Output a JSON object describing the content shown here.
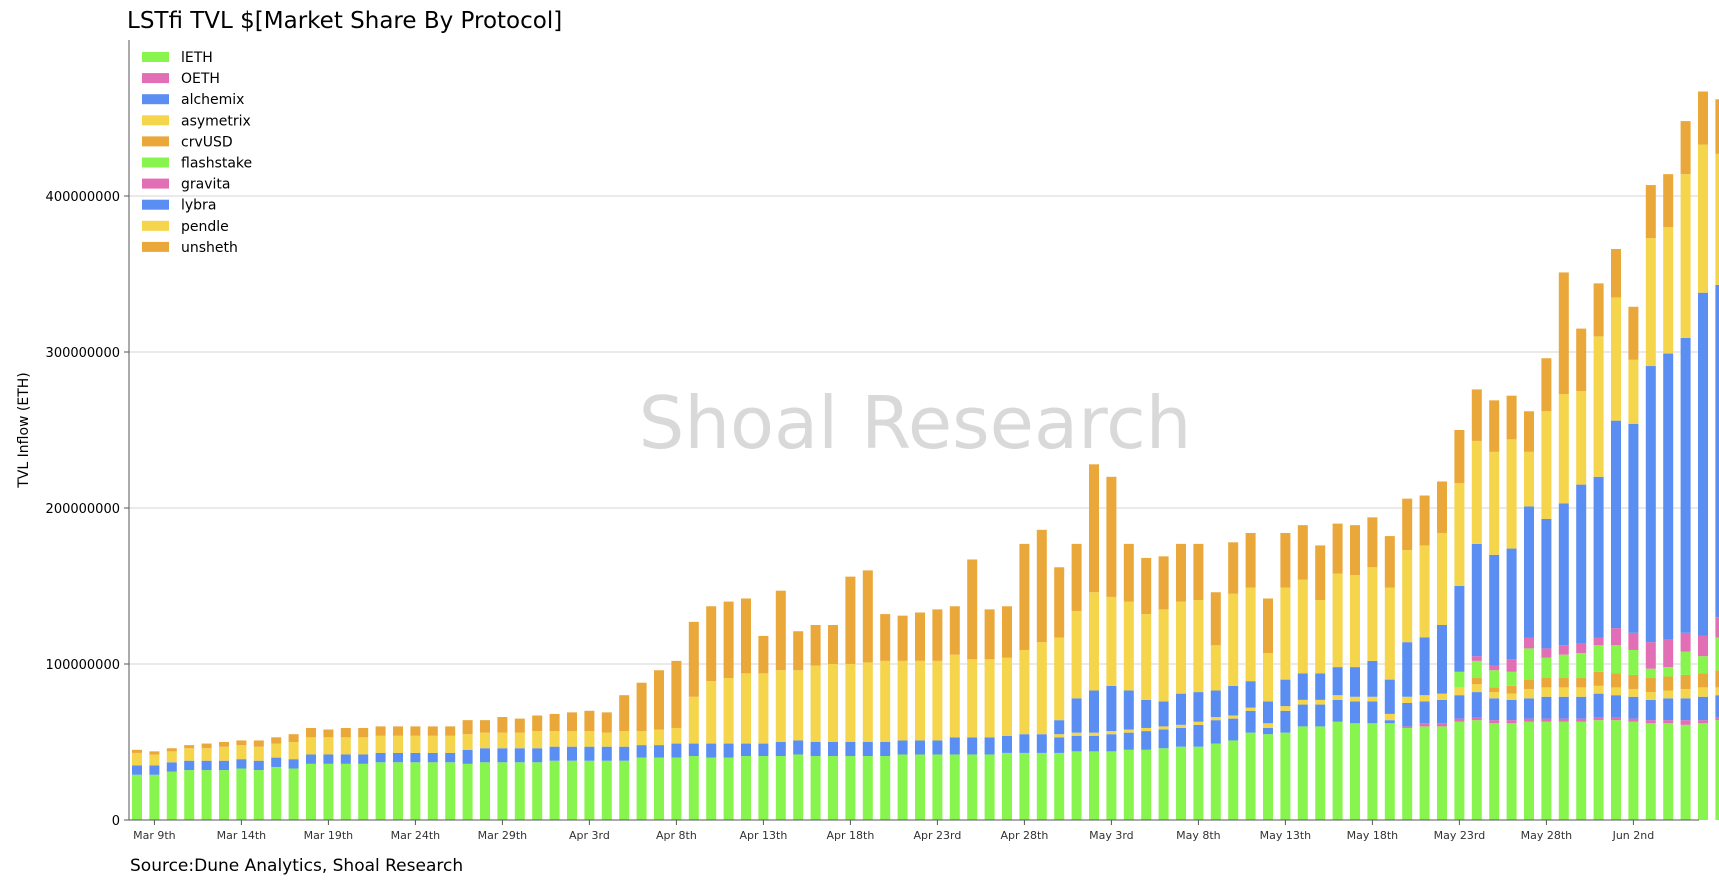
{
  "chart_data": {
    "type": "bar",
    "stacked": true,
    "title": "LSTfi TVL $[Market Share By Protocol]",
    "source": "Source:Dune Analytics, Shoal Research",
    "watermark": "Shoal Research",
    "ylabel": "TVL Inflow (ETH)",
    "xlabel": "",
    "ylim": [
      0,
      500000000
    ],
    "yticks": [
      0,
      100000000,
      200000000,
      300000000,
      400000000
    ],
    "grid": true,
    "legend_position": "top-left",
    "x_tick_labels": [
      "Mar 9th",
      "Mar 14th",
      "Mar 19th",
      "Mar 24th",
      "Mar 29th",
      "Apr 3rd",
      "Apr 8th",
      "Apr 13th",
      "Apr 18th",
      "Apr 23rd",
      "Apr 28th",
      "May 3rd",
      "May 8th",
      "May 13th",
      "May 18th",
      "May 23rd",
      "May 28th",
      "Jun 2nd"
    ],
    "tick_every": 5,
    "legend": [
      {
        "name": "lETH",
        "color": "#88f54e"
      },
      {
        "name": "OETH",
        "color": "#e26eb5"
      },
      {
        "name": "alchemix",
        "color": "#5b8ef2"
      },
      {
        "name": "asymetrix",
        "color": "#f4d54b"
      },
      {
        "name": "crvUSD",
        "color": "#eaa73a"
      },
      {
        "name": "flashstake",
        "color": "#88f54e"
      },
      {
        "name": "gravita",
        "color": "#e26eb5"
      },
      {
        "name": "lybra",
        "color": "#5b8ef2"
      },
      {
        "name": "pendle",
        "color": "#f4d54b"
      },
      {
        "name": "unsheth",
        "color": "#eaa73a"
      }
    ],
    "segments_order": [
      "base",
      "oeth",
      "alchemix",
      "asymetrix",
      "crvusd",
      "flashstake",
      "gravita",
      "lybra",
      "pendle",
      "unsheth"
    ],
    "segment_colors": {
      "base": "#88f54e",
      "oeth": "#e26eb5",
      "alchemix": "#5b8ef2",
      "asymetrix": "#f4d54b",
      "crvusd": "#eaa73a",
      "flashstake": "#88f54e",
      "gravita": "#e26eb5",
      "lybra": "#5b8ef2",
      "pendle": "#f4d54b",
      "unsheth": "#eaa73a"
    },
    "stack_values_in_millions": [
      [
        29,
        0,
        6,
        0,
        0,
        0,
        0,
        0,
        8,
        2
      ],
      [
        29,
        0,
        6,
        0,
        0,
        0,
        0,
        0,
        7,
        2
      ],
      [
        31,
        0,
        6,
        0,
        0,
        0,
        0,
        0,
        7,
        2
      ],
      [
        32,
        0,
        6,
        0,
        0,
        0,
        0,
        0,
        8,
        2
      ],
      [
        32,
        0,
        6,
        0,
        0,
        0,
        0,
        0,
        8,
        3
      ],
      [
        32,
        0,
        6,
        0,
        0,
        0,
        0,
        0,
        9,
        3
      ],
      [
        33,
        0,
        6,
        0,
        0,
        0,
        0,
        0,
        9,
        3
      ],
      [
        32,
        0,
        6,
        0,
        0,
        0,
        0,
        0,
        9,
        4
      ],
      [
        34,
        0,
        6,
        0,
        0,
        0,
        0,
        0,
        9,
        4
      ],
      [
        33,
        0,
        6,
        0,
        0,
        0,
        0,
        0,
        11,
        5
      ],
      [
        36,
        0,
        6,
        0,
        0,
        0,
        0,
        0,
        11,
        6
      ],
      [
        36,
        0,
        6,
        0,
        0,
        0,
        0,
        0,
        11,
        5
      ],
      [
        36,
        0,
        6,
        0,
        0,
        0,
        0,
        0,
        11,
        6
      ],
      [
        36,
        0,
        6,
        0,
        0,
        0,
        0,
        0,
        11,
        6
      ],
      [
        37,
        0,
        6,
        0,
        0,
        0,
        0,
        0,
        11,
        6
      ],
      [
        37,
        0,
        6,
        0,
        0,
        0,
        0,
        0,
        11,
        6
      ],
      [
        37,
        0,
        6,
        0,
        0,
        0,
        0,
        0,
        11,
        6
      ],
      [
        37,
        0,
        6,
        0,
        0,
        0,
        0,
        0,
        11,
        6
      ],
      [
        37,
        0,
        6,
        0,
        0,
        0,
        0,
        0,
        11,
        6
      ],
      [
        36,
        0,
        9,
        0,
        0,
        0,
        0,
        0,
        10,
        9
      ],
      [
        37,
        0,
        9,
        0,
        0,
        0,
        0,
        0,
        10,
        8
      ],
      [
        37,
        0,
        9,
        0,
        0,
        0,
        0,
        0,
        10,
        10
      ],
      [
        37,
        0,
        9,
        0,
        0,
        0,
        0,
        0,
        10,
        9
      ],
      [
        37,
        0,
        9,
        0,
        0,
        0,
        0,
        0,
        11,
        10
      ],
      [
        38,
        0,
        9,
        0,
        0,
        0,
        0,
        0,
        10,
        11
      ],
      [
        38,
        0,
        9,
        0,
        0,
        0,
        0,
        0,
        10,
        12
      ],
      [
        38,
        0,
        9,
        0,
        0,
        0,
        0,
        0,
        10,
        13
      ],
      [
        38,
        0,
        9,
        0,
        0,
        0,
        0,
        0,
        9,
        13
      ],
      [
        38,
        0,
        9,
        0,
        0,
        0,
        0,
        0,
        10,
        23
      ],
      [
        40,
        0,
        8,
        0,
        0,
        0,
        0,
        0,
        9,
        31
      ],
      [
        40,
        0,
        8,
        0,
        0,
        0,
        0,
        0,
        10,
        38
      ],
      [
        40,
        0,
        9,
        0,
        0,
        0,
        0,
        0,
        10,
        43
      ],
      [
        41,
        0,
        8,
        0,
        0,
        0,
        0,
        0,
        30,
        48
      ],
      [
        40,
        0,
        9,
        0,
        0,
        0,
        0,
        0,
        40,
        48
      ],
      [
        40,
        0,
        9,
        0,
        0,
        0,
        0,
        0,
        42,
        49
      ],
      [
        41,
        0,
        8,
        0,
        0,
        0,
        0,
        0,
        45,
        48
      ],
      [
        41,
        0,
        8,
        0,
        0,
        0,
        0,
        0,
        45,
        24
      ],
      [
        41,
        0,
        9,
        0,
        0,
        0,
        0,
        0,
        46,
        51
      ],
      [
        42,
        0,
        9,
        0,
        0,
        0,
        0,
        0,
        45,
        25
      ],
      [
        41,
        0,
        9,
        0,
        0,
        0,
        0,
        0,
        49,
        26
      ],
      [
        41,
        0,
        9,
        0,
        0,
        0,
        0,
        0,
        50,
        25
      ],
      [
        41,
        0,
        9,
        0,
        0,
        0,
        0,
        0,
        50,
        56
      ],
      [
        41,
        0,
        9,
        0,
        0,
        0,
        0,
        0,
        51,
        59
      ],
      [
        41,
        0,
        9,
        0,
        0,
        0,
        0,
        0,
        52,
        30
      ],
      [
        42,
        0,
        9,
        0,
        0,
        0,
        0,
        0,
        51,
        29
      ],
      [
        42,
        0,
        9,
        0,
        0,
        0,
        0,
        0,
        51,
        31
      ],
      [
        42,
        0,
        9,
        0,
        0,
        0,
        0,
        0,
        51,
        33
      ],
      [
        42,
        0,
        11,
        0,
        0,
        0,
        0,
        0,
        53,
        31
      ],
      [
        42,
        0,
        11,
        0,
        0,
        0,
        0,
        0,
        50,
        64
      ],
      [
        42,
        0,
        11,
        0,
        0,
        0,
        0,
        0,
        50,
        32
      ],
      [
        43,
        0,
        11,
        0,
        0,
        0,
        0,
        0,
        50,
        33
      ],
      [
        43,
        0,
        12,
        0,
        0,
        0,
        0,
        0,
        54,
        68
      ],
      [
        43,
        0,
        12,
        0,
        0,
        0,
        0,
        0,
        59,
        72
      ],
      [
        43,
        0,
        10,
        2,
        0,
        0,
        0,
        9,
        53,
        45
      ],
      [
        44,
        0,
        10,
        2,
        0,
        0,
        0,
        22,
        56,
        43
      ],
      [
        44,
        0,
        10,
        2,
        0,
        0,
        0,
        27,
        63,
        82
      ],
      [
        44,
        0,
        11,
        2,
        0,
        0,
        0,
        29,
        57,
        77
      ],
      [
        45,
        0,
        11,
        2,
        0,
        0,
        0,
        25,
        57,
        37
      ],
      [
        45,
        0,
        12,
        2,
        0,
        0,
        0,
        18,
        55,
        36
      ],
      [
        46,
        0,
        12,
        2,
        0,
        0,
        0,
        16,
        59,
        34
      ],
      [
        47,
        0,
        12,
        2,
        0,
        0,
        0,
        20,
        59,
        37
      ],
      [
        47,
        0,
        14,
        2,
        0,
        0,
        0,
        19,
        59,
        36
      ],
      [
        49,
        0,
        15,
        2,
        0,
        0,
        0,
        17,
        29,
        34
      ],
      [
        51,
        0,
        14,
        2,
        0,
        0,
        0,
        19,
        59,
        33
      ],
      [
        56,
        0,
        14,
        2,
        0,
        0,
        0,
        17,
        60,
        35
      ],
      [
        55,
        0,
        4,
        3,
        0,
        0,
        0,
        14,
        31,
        35
      ],
      [
        56,
        0,
        14,
        3,
        0,
        0,
        0,
        17,
        59,
        35
      ],
      [
        60,
        0,
        14,
        3,
        0,
        0,
        0,
        17,
        60,
        35
      ],
      [
        60,
        0,
        14,
        3,
        0,
        0,
        0,
        17,
        47,
        35
      ],
      [
        63,
        0,
        14,
        3,
        0,
        0,
        0,
        18,
        60,
        32
      ],
      [
        62,
        0,
        14,
        3,
        0,
        0,
        0,
        19,
        59,
        32
      ],
      [
        62,
        0,
        14,
        3,
        0,
        0,
        0,
        23,
        60,
        32
      ],
      [
        62,
        0,
        2,
        4,
        0,
        0,
        0,
        22,
        59,
        33
      ],
      [
        59,
        1,
        15,
        4,
        0,
        0,
        0,
        35,
        59,
        33
      ],
      [
        60,
        2,
        14,
        4,
        0,
        0,
        0,
        37,
        59,
        32
      ],
      [
        60,
        2,
        15,
        4,
        0,
        0,
        0,
        44,
        59,
        33
      ],
      [
        63,
        2,
        15,
        5,
        0,
        10,
        0,
        55,
        66,
        34
      ],
      [
        64,
        2,
        16,
        5,
        4,
        11,
        3,
        72,
        66,
        33
      ],
      [
        62,
        2,
        14,
        4,
        3,
        11,
        3,
        71,
        66,
        33
      ],
      [
        62,
        2,
        13,
        4,
        5,
        9,
        8,
        71,
        70,
        28
      ],
      [
        63,
        2,
        13,
        6,
        6,
        20,
        7,
        84,
        35,
        26
      ],
      [
        63,
        2,
        14,
        6,
        6,
        13,
        6,
        83,
        69,
        34
      ],
      [
        63,
        2,
        14,
        6,
        6,
        15,
        6,
        91,
        70,
        78
      ],
      [
        63,
        2,
        14,
        6,
        6,
        16,
        6,
        102,
        60,
        40
      ],
      [
        64,
        2,
        15,
        5,
        9,
        17,
        5,
        103,
        90,
        34
      ],
      [
        64,
        2,
        14,
        5,
        9,
        18,
        11,
        133,
        79,
        31
      ],
      [
        63,
        2,
        14,
        5,
        9,
        16,
        11,
        134,
        41,
        34
      ],
      [
        62,
        2,
        13,
        5,
        9,
        6,
        17,
        177,
        82,
        34
      ],
      [
        62,
        2,
        14,
        5,
        9,
        6,
        18,
        183,
        81,
        34
      ],
      [
        61,
        3,
        14,
        6,
        9,
        15,
        12,
        189,
        105,
        34
      ],
      [
        62,
        2,
        15,
        6,
        9,
        11,
        13,
        220,
        95,
        34
      ],
      [
        64,
        2,
        14,
        5,
        11,
        21,
        13,
        213,
        84,
        35
      ]
    ]
  }
}
